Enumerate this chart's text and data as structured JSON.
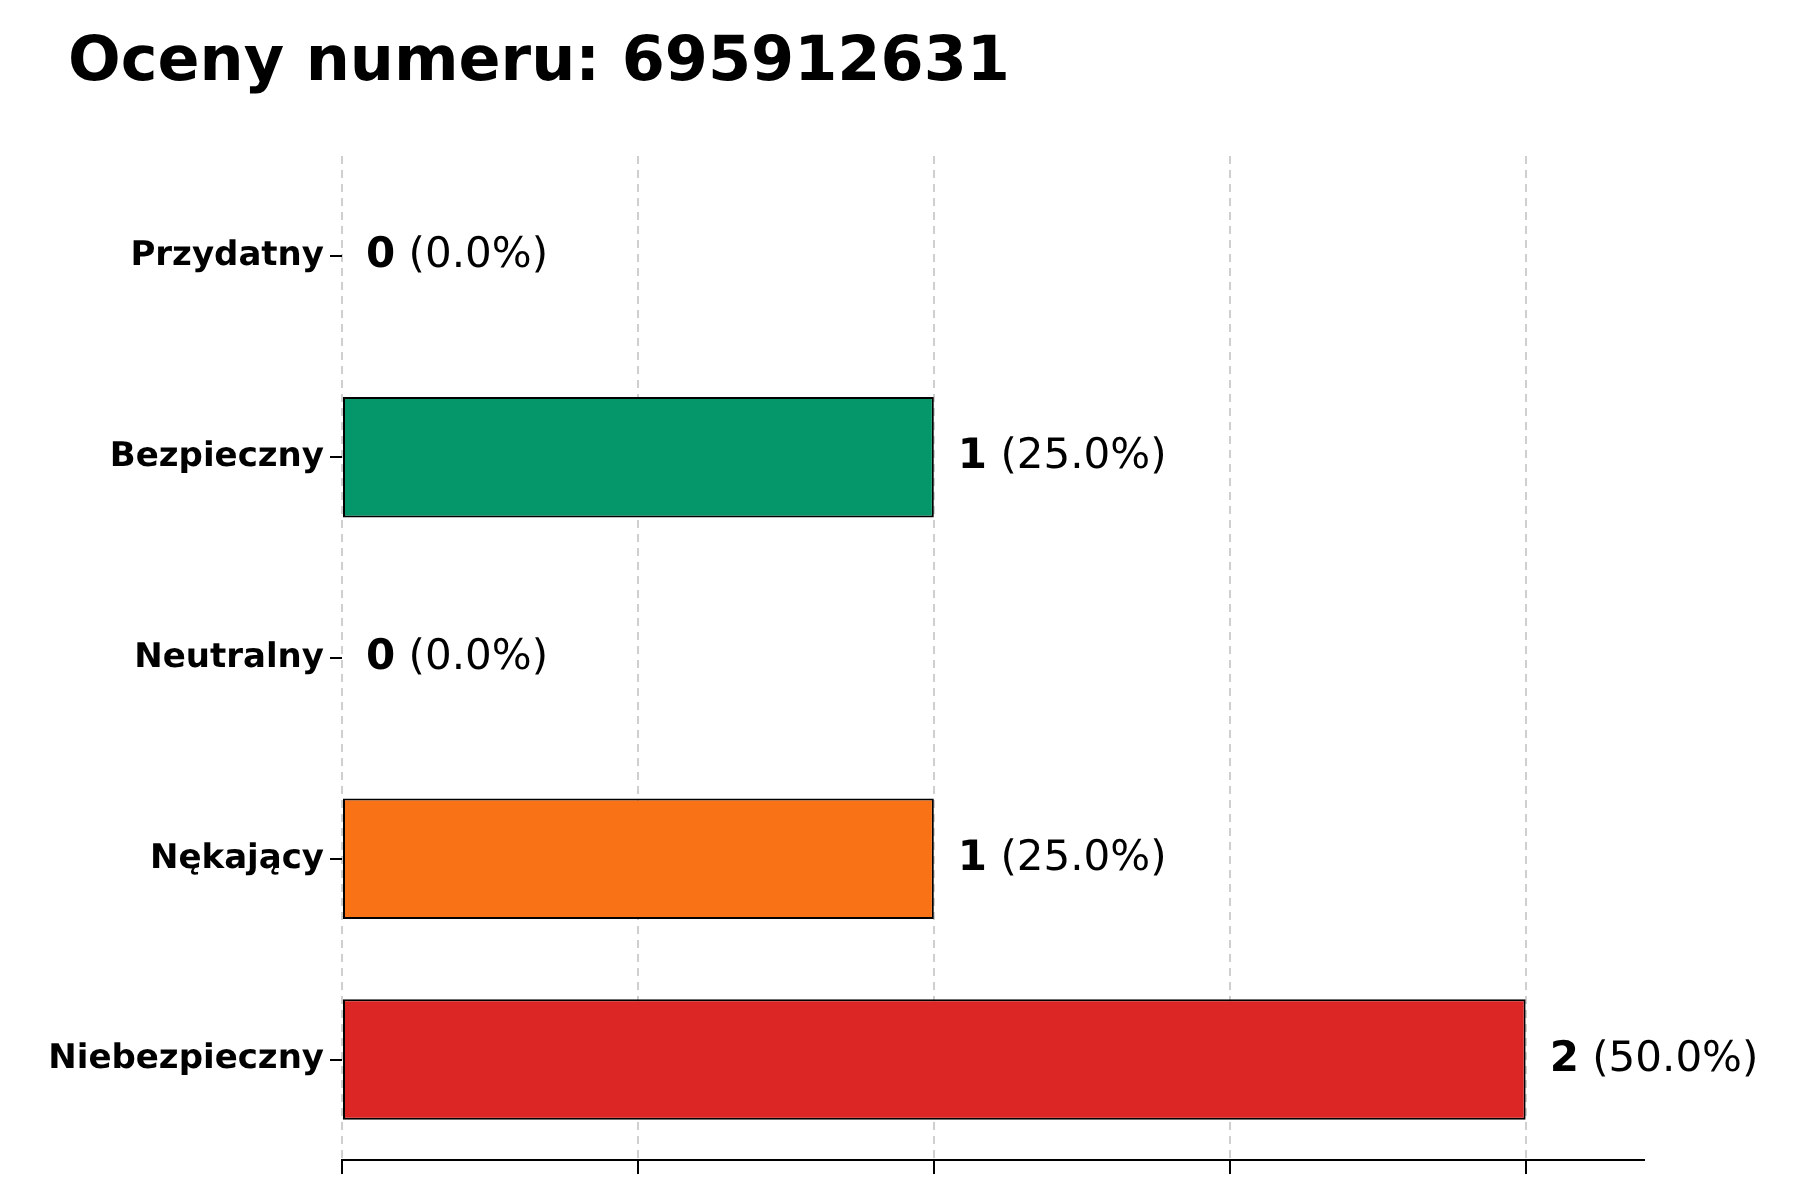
{
  "chart_data": {
    "type": "bar",
    "orientation": "horizontal",
    "title": "Oceny numeru: 695912631",
    "categories": [
      "Przydatny",
      "Bezpieczny",
      "Neutralny",
      "Nękający",
      "Niebezpieczny"
    ],
    "values": [
      0,
      1,
      0,
      1,
      2
    ],
    "colors": [
      "#16a34a",
      "#059669",
      "#9ca3af",
      "#f97316",
      "#dc2626"
    ],
    "value_labels": [
      "0 (0.0%)",
      "1 (25.0%)",
      "0 (0.0%)",
      "1 (25.0%)",
      "2 (50.0%)"
    ],
    "xlim": [
      0,
      2.2
    ],
    "xticks": [
      {
        "value": 0,
        "label": null
      },
      {
        "value": 0.5,
        "label": null
      },
      {
        "value": 1,
        "label": null
      },
      {
        "value": 1.5,
        "label": null
      },
      {
        "value": 2,
        "label": null
      }
    ],
    "tick_labels": "y",
    "grid": "x"
  }
}
